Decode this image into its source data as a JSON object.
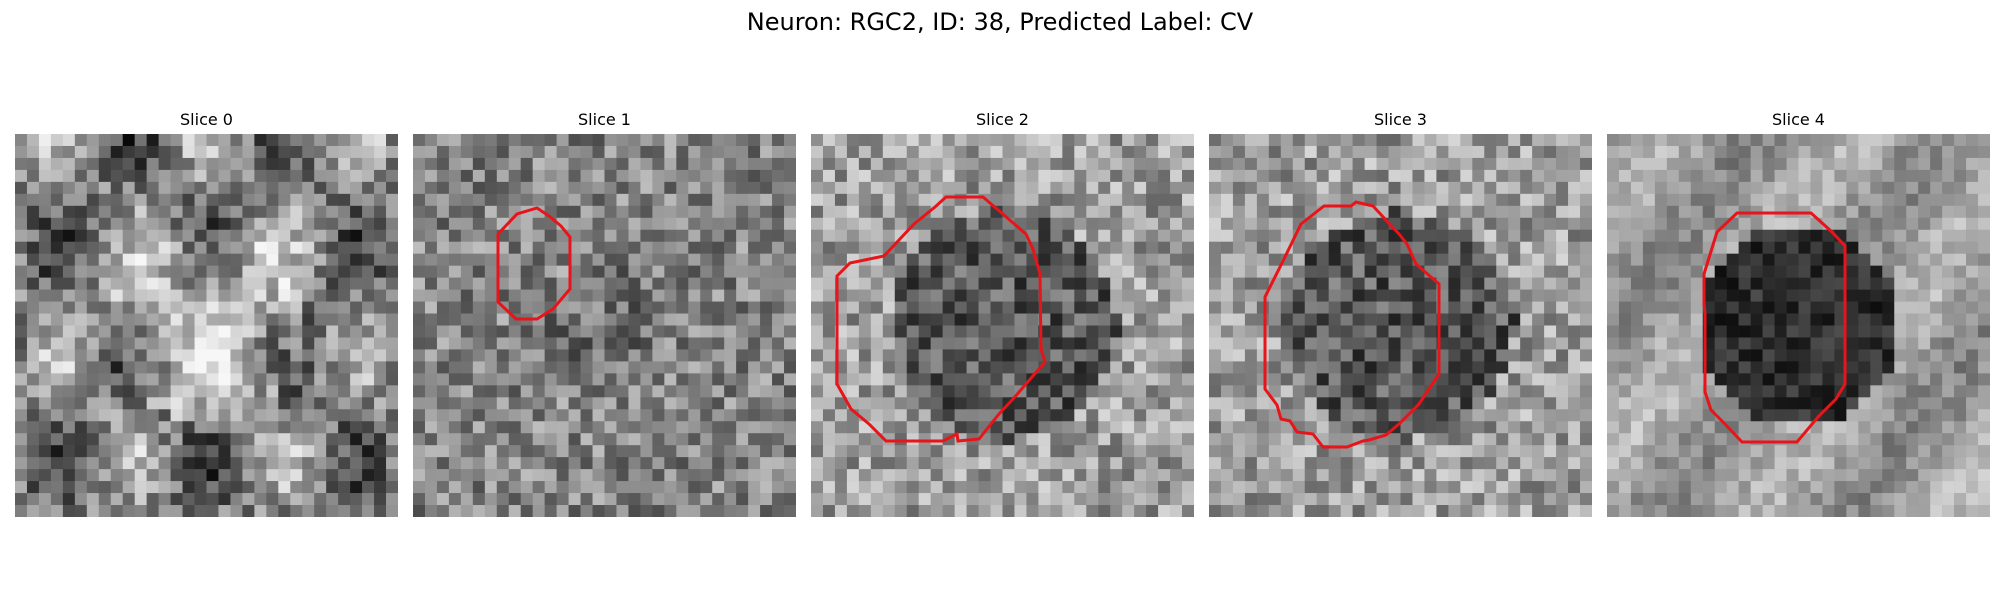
{
  "figure": {
    "title": "Neuron: RGC2, ID: 38, Predicted Label: CV"
  },
  "panels": [
    {
      "title": "Slice 0",
      "roi_visible": false
    },
    {
      "title": "Slice 1",
      "roi_visible": true
    },
    {
      "title": "Slice 2",
      "roi_visible": true
    },
    {
      "title": "Slice 3",
      "roi_visible": true
    },
    {
      "title": "Slice 4",
      "roi_visible": true
    }
  ],
  "colors": {
    "roi_outline": "#e8141a",
    "background": "#ffffff"
  },
  "image": {
    "colormap": "grayscale",
    "grid_cells": 32
  }
}
